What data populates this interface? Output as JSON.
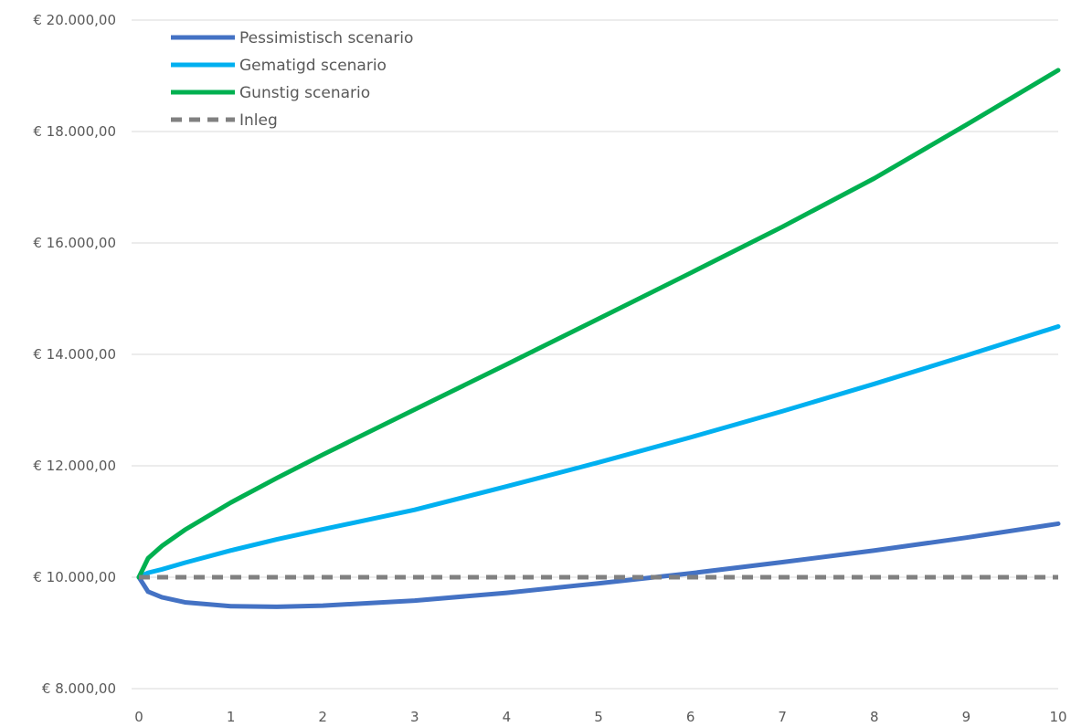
{
  "chart_data": {
    "type": "line",
    "title": "",
    "xlabel": "",
    "ylabel": "",
    "xlim": [
      0,
      10
    ],
    "ylim": [
      8000,
      20000
    ],
    "x_ticks": [
      "0",
      "1",
      "2",
      "3",
      "4",
      "5",
      "6",
      "7",
      "8",
      "9",
      "10"
    ],
    "y_ticks": [
      "€ 8.000,00",
      "€ 10.000,00",
      "€ 12.000,00",
      "€ 14.000,00",
      "€ 16.000,00",
      "€ 18.000,00",
      "€ 20.000,00"
    ],
    "grid": "horizontal",
    "legend_position": "top-left",
    "x": [
      0,
      0.1,
      0.25,
      0.5,
      1,
      1.5,
      2,
      3,
      4,
      5,
      6,
      7,
      8,
      9,
      10
    ],
    "series": [
      {
        "name": "Pessimistisch scenario",
        "color": "#4472C4",
        "style": "solid",
        "values": [
          10000,
          9740,
          9640,
          9550,
          9480,
          9470,
          9490,
          9580,
          9720,
          9890,
          10070,
          10270,
          10480,
          10710,
          10960
        ]
      },
      {
        "name": "Gematigd scenario",
        "color": "#00B0F0",
        "style": "solid",
        "values": [
          10000,
          10080,
          10140,
          10260,
          10480,
          10680,
          10860,
          11210,
          11630,
          12060,
          12510,
          12980,
          13470,
          13980,
          14500
        ]
      },
      {
        "name": "Gunstig scenario",
        "color": "#00B050",
        "style": "solid",
        "values": [
          10000,
          10340,
          10560,
          10850,
          11340,
          11780,
          12200,
          13010,
          13820,
          14640,
          15460,
          16290,
          17160,
          18120,
          19100
        ]
      },
      {
        "name": "Inleg",
        "color": "#808080",
        "style": "dashed",
        "values": [
          10000,
          10000,
          10000,
          10000,
          10000,
          10000,
          10000,
          10000,
          10000,
          10000,
          10000,
          10000,
          10000,
          10000,
          10000
        ]
      }
    ]
  }
}
